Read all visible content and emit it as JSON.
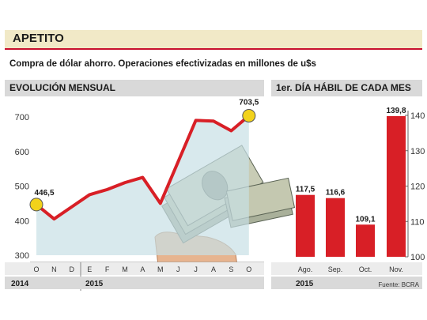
{
  "header": {
    "title": "APETITO",
    "subtitle": "Compra de dólar ahorro. Operaciones efectivizadas en millones de u$s"
  },
  "colors": {
    "accent": "#d81f26",
    "marker": "#f2d21b",
    "band": "#f1e9c7",
    "header_bar": "#d9d9d9"
  },
  "source": "Fuente: BCRA",
  "chart_data": [
    {
      "type": "line",
      "title": "EVOLUCIÓN MENSUAL",
      "categories": [
        "O",
        "N",
        "D",
        "E",
        "F",
        "M",
        "A",
        "M",
        "J",
        "J",
        "A",
        "S",
        "O"
      ],
      "values": [
        446.5,
        405,
        440,
        475,
        490,
        510,
        525,
        450,
        570,
        690,
        688,
        660,
        703.5
      ],
      "labeled_points": [
        {
          "index": 0,
          "label": "446,5"
        },
        {
          "index": 12,
          "label": "703,5"
        }
      ],
      "yticks": [
        "300",
        "400",
        "500",
        "600",
        "700"
      ],
      "ylim": [
        300,
        740
      ],
      "year_groups": [
        {
          "label": "2014",
          "start": 0,
          "end": 2
        },
        {
          "label": "2015",
          "start": 3,
          "end": 12
        }
      ],
      "grid": false
    },
    {
      "type": "bar",
      "title": "1er. DÍA HÁBIL DE CADA MES",
      "categories": [
        "Ago.",
        "Sep.",
        "Oct.",
        "Nov."
      ],
      "values": [
        117.5,
        116.6,
        109.1,
        139.8
      ],
      "data_labels": [
        "117,5",
        "116,6",
        "109,1",
        "139,8"
      ],
      "yticks": [
        "100",
        "110",
        "120",
        "130",
        "140"
      ],
      "ylim": [
        100,
        142
      ],
      "year_label": "2015",
      "axis_side": "right"
    }
  ]
}
